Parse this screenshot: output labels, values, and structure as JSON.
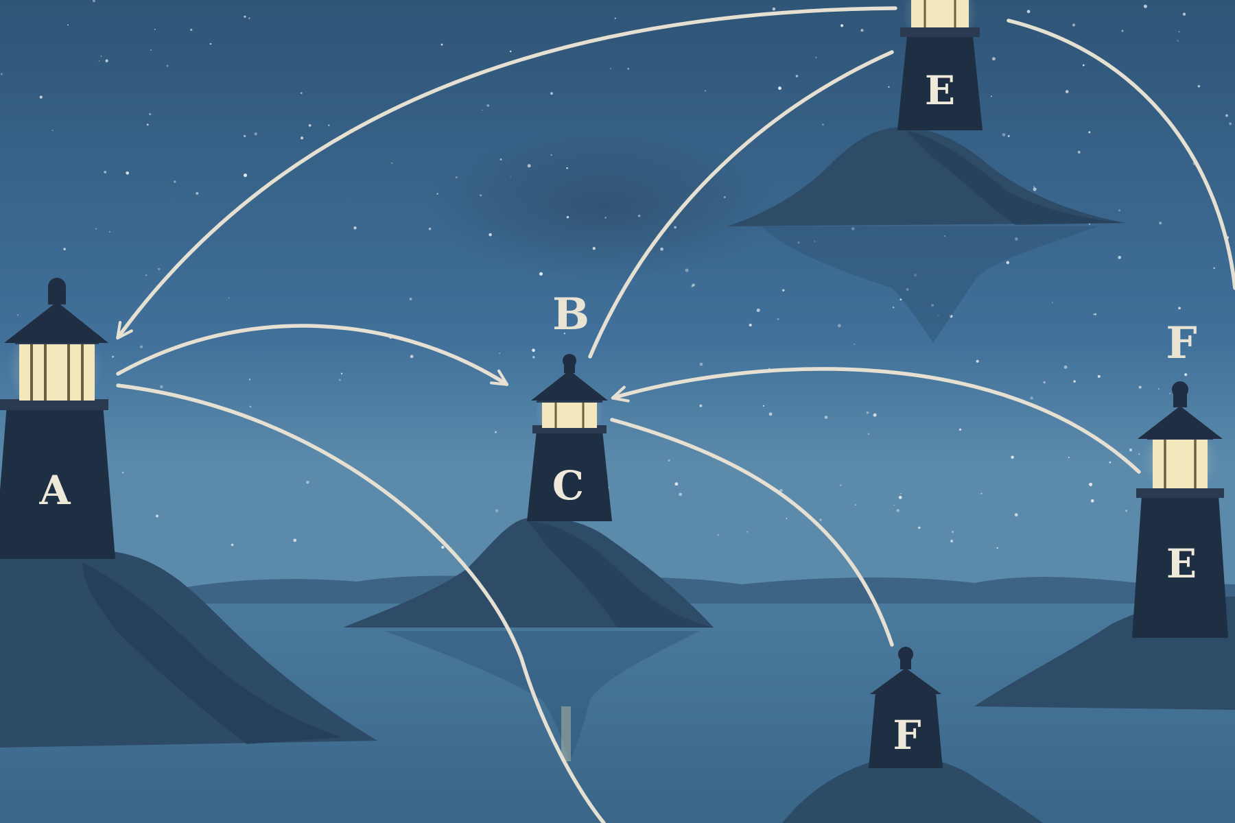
{
  "scene": {
    "sky_top": "#33597d",
    "sky_bottom": "#5a88a8",
    "water": "#3e6a8c",
    "island_color": "#2d4a66",
    "tower_color": "#1e2f44",
    "lamp_glow": "#f4e6bd",
    "arrow_color": "#e6e0d2"
  },
  "labels": {
    "lighthouse_a": "A",
    "label_b": "B",
    "lighthouse_c": "C",
    "lighthouse_e_top": "E",
    "label_f": "F",
    "lighthouse_e_right": "E",
    "lighthouse_f_bottom": "F"
  }
}
